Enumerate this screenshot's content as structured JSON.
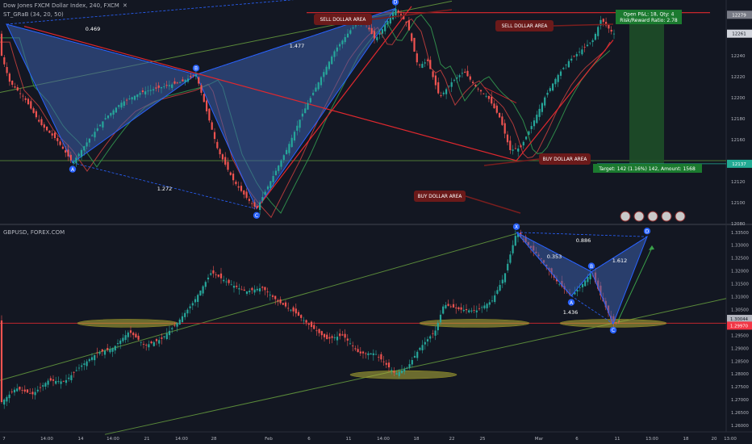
{
  "top_panel": {
    "symbol_header": "Dow Jones FXCM Dollar Index, 240, FXCM",
    "indicator_header": "ST_GRaB (34, 20, 50)",
    "close_icon": "close-icon",
    "y_ticks": [
      "12279",
      "12261",
      "12240",
      "12220",
      "12200",
      "12180",
      "12160",
      "12137",
      "12120",
      "12100",
      "12080"
    ],
    "price_tags": [
      {
        "label": "12279",
        "role": "open-price",
        "color": "#787b86"
      },
      {
        "label": "12261",
        "role": "last-price",
        "color": "#d1d4dc"
      },
      {
        "label": "12137",
        "role": "target-price",
        "color": "#22ab94"
      }
    ],
    "zones": [
      {
        "label": "SELL DOLLAR AREA"
      },
      {
        "label": "SELL DOLLAR AREA"
      },
      {
        "label": "BUY DOLLAR AREA"
      },
      {
        "label": "BUY DOLLAR AREA"
      }
    ],
    "position": {
      "open_line": "Open P&L: 18, Qty: 4",
      "rr_line": "Risk/Reward Ratio: 2.78",
      "target_line": "Target: 142 (1.16%) 142, Amount: 1568"
    }
  },
  "bottom_panel": {
    "symbol_header": "GBPUSD, FOREX.COM",
    "y_ticks": [
      "1.33500",
      "1.33000",
      "1.32500",
      "1.32000",
      "1.31500",
      "1.31000",
      "1.30500",
      "1.30044",
      "1.29970",
      "1.29500",
      "1.29000",
      "1.28500",
      "1.28000",
      "1.27500",
      "1.27000",
      "1.26500",
      "1.26000"
    ],
    "price_tags": [
      {
        "label": "1.30044",
        "role": "last-price",
        "color": "#b2b5be"
      },
      {
        "label": "1.29970",
        "role": "level",
        "color": "#f23645"
      }
    ]
  },
  "x_axis": {
    "ticks": [
      "7",
      "14:00",
      "14",
      "14:00",
      "21",
      "14:00",
      "28",
      "Feb",
      "6",
      "11",
      "14:00",
      "18",
      "22",
      "25",
      "Mar",
      "6",
      "11",
      "13:00",
      "18",
      "20",
      "13:00"
    ]
  },
  "colors": {
    "background": "#131722",
    "bull": "#26a69a",
    "bear": "#ef5350",
    "pattern_fill": "#3d5eaa",
    "pattern_line": "#2962ff",
    "trend_red": "#e0282e",
    "trend_green": "#5a8a3a",
    "target_box": "#1e5128",
    "ellipse": "#b5b03a"
  },
  "chart_data": [
    {
      "type": "candlestick",
      "title": "Dow Jones FXCM Dollar Index, 240, FXCM",
      "ylim": [
        12080,
        12290
      ],
      "pattern": {
        "points": [
          {
            "label": "A",
            "value": 12138
          },
          {
            "label": "B",
            "value": 12222
          },
          {
            "label": "C",
            "value": 12094
          },
          {
            "label": "D",
            "value": 12285
          }
        ],
        "ratios": [
          "0.469",
          "1.477",
          "1.272"
        ]
      },
      "support_level": 12140,
      "resistance_level": 12281,
      "last_price": 12261
    },
    {
      "type": "candlestick",
      "title": "GBPUSD, FOREX.COM",
      "ylim": [
        1.2575,
        1.3365
      ],
      "pattern": {
        "points": [
          {
            "label": "X",
            "value": 1.335
          },
          {
            "label": "A",
            "value": 1.3103
          },
          {
            "label": "B",
            "value": 1.3197
          },
          {
            "label": "C",
            "value": 1.2995
          },
          {
            "label": "D",
            "value": 1.3333
          }
        ],
        "ratios": [
          "0.353",
          "0.886",
          "1.612",
          "1.436"
        ]
      },
      "horizontal_level": 1.2997,
      "last_price": 1.30044
    }
  ]
}
